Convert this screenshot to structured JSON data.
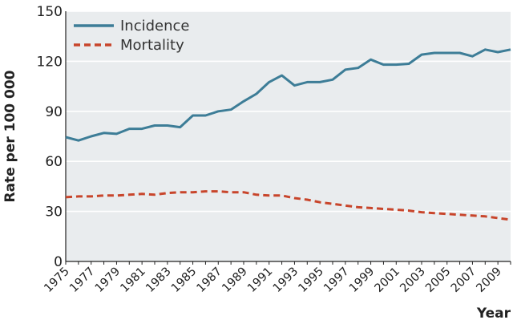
{
  "chart_data": {
    "type": "line",
    "x": [
      1975,
      1976,
      1977,
      1978,
      1979,
      1980,
      1981,
      1982,
      1983,
      1984,
      1985,
      1986,
      1987,
      1988,
      1989,
      1990,
      1991,
      1992,
      1993,
      1994,
      1995,
      1996,
      1997,
      1998,
      1999,
      2000,
      2001,
      2002,
      2003,
      2004,
      2005,
      2006,
      2007,
      2008,
      2009,
      2010
    ],
    "x_tick_labels": [
      "1975",
      "1977",
      "1979",
      "1981",
      "1983",
      "1985",
      "1987",
      "1989",
      "1991",
      "1993",
      "1995",
      "1997",
      "1999",
      "2001",
      "2003",
      "2005",
      "2007",
      "2009"
    ],
    "xlim": [
      1975,
      2010
    ],
    "ylim": [
      0,
      150
    ],
    "y_ticks": [
      0,
      30,
      60,
      90,
      120,
      150
    ],
    "xlabel": "Year",
    "ylabel": "Rate per 100 000",
    "grid": true,
    "legend_position": "top-left",
    "series": [
      {
        "name": "Incidence",
        "style": "solid",
        "color": "#3d7d97",
        "values": [
          74.5,
          72.5,
          75,
          77,
          76.5,
          79.5,
          79.5,
          81.5,
          81.5,
          80.5,
          87.5,
          87.5,
          90,
          91,
          96,
          100.5,
          107.5,
          111.5,
          105.5,
          107.5,
          107.5,
          109,
          115,
          116,
          121,
          118,
          118,
          118.5,
          124,
          125,
          125,
          125,
          123,
          127,
          125.5,
          127
        ]
      },
      {
        "name": "Mortality",
        "style": "dashed",
        "color": "#c8452b",
        "values": [
          38.5,
          39,
          39,
          39.5,
          39.5,
          40,
          40.5,
          40,
          41,
          41.5,
          41.5,
          42,
          42,
          41.5,
          41.5,
          40,
          39.5,
          39.5,
          38,
          37,
          35.5,
          34.5,
          33.5,
          32.5,
          32,
          31.5,
          31,
          30.5,
          29.5,
          29,
          28.5,
          28,
          27.5,
          27,
          26,
          25
        ]
      }
    ]
  }
}
